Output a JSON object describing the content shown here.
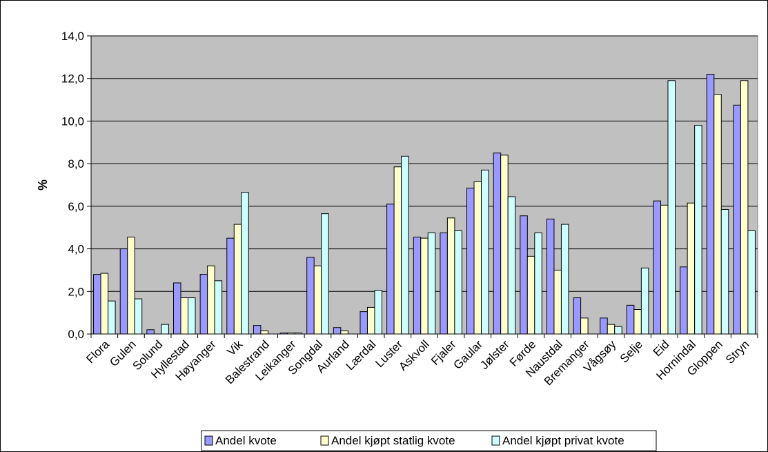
{
  "chart_data": {
    "type": "bar",
    "title": "",
    "xlabel": "",
    "ylabel": "%",
    "ylim": [
      0,
      14
    ],
    "yticks": [
      "0,0",
      "2,0",
      "4,0",
      "6,0",
      "8,0",
      "10,0",
      "12,0",
      "14,0"
    ],
    "grid": true,
    "legend_position": "bottom",
    "categories": [
      "Flora",
      "Gulen",
      "Solund",
      "Hyllestad",
      "Høyanger",
      "Vik",
      "Balestrand",
      "Leikanger",
      "Songdal",
      "Aurland",
      "Lærdal",
      "Luster",
      "Askvoll",
      "Fjaler",
      "Gaular",
      "Jølster",
      "Førde",
      "Naustdal",
      "Bremanger",
      "Vågsøy",
      "Selje",
      "Eid",
      "Hornindal",
      "Gloppen",
      "Stryn"
    ],
    "series": [
      {
        "name": "Andel kvote",
        "color": "#9999ff",
        "values": [
          2.8,
          4.0,
          0.2,
          2.4,
          2.8,
          4.5,
          0.4,
          0.05,
          3.6,
          0.3,
          1.05,
          6.1,
          4.55,
          4.75,
          6.85,
          8.5,
          5.55,
          5.4,
          1.7,
          0.75,
          1.35,
          6.25,
          3.15,
          12.2,
          10.75
        ]
      },
      {
        "name": "Andel kjøpt statlig kvote",
        "color": "#ffffcc",
        "values": [
          2.85,
          4.55,
          0.0,
          1.7,
          3.2,
          5.15,
          0.15,
          0.05,
          3.2,
          0.15,
          1.25,
          7.85,
          4.5,
          5.45,
          7.15,
          8.4,
          3.65,
          3.0,
          0.75,
          0.45,
          1.15,
          6.05,
          6.15,
          11.25,
          11.9
        ]
      },
      {
        "name": "Andel kjøpt privat kvote",
        "color": "#ccffff",
        "values": [
          1.55,
          1.65,
          0.45,
          1.7,
          2.5,
          6.65,
          0.0,
          0.05,
          5.65,
          0.0,
          2.05,
          8.35,
          4.75,
          4.85,
          7.7,
          6.45,
          4.75,
          5.15,
          0.0,
          0.35,
          3.1,
          11.9,
          9.8,
          5.85,
          4.85
        ]
      }
    ]
  }
}
